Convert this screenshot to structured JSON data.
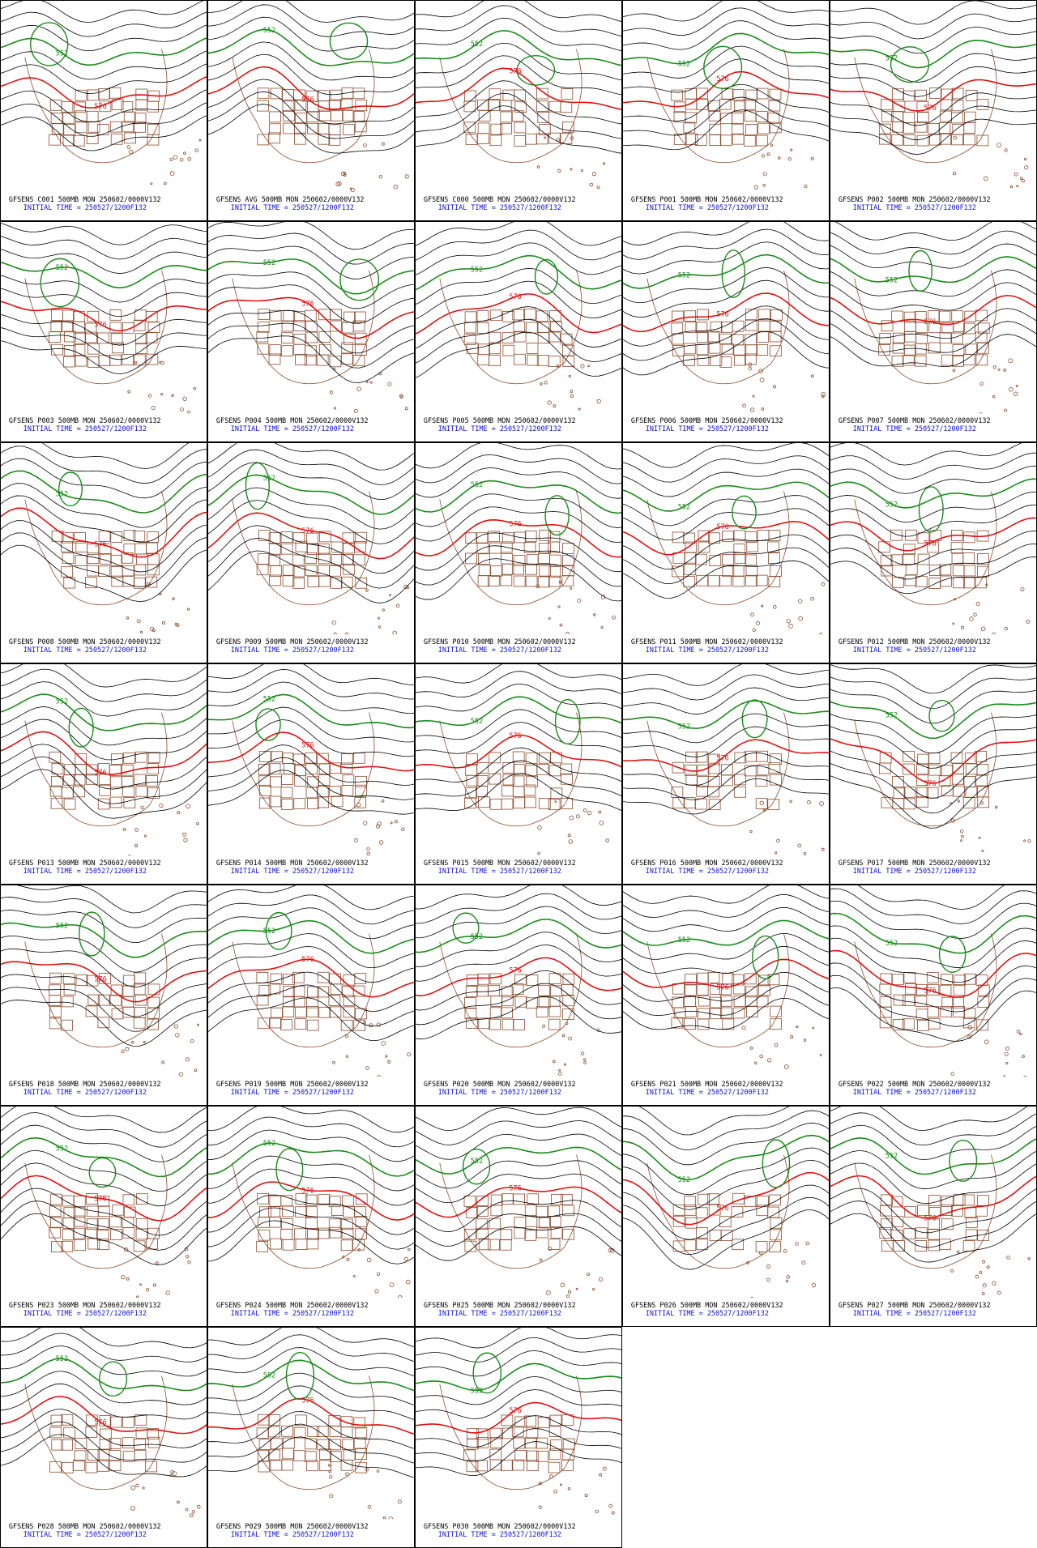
{
  "panels": [
    {
      "title": "GFSENS C001 500MB MON 250602/0000V132",
      "initial_time": "INITIAL TIME = 250527/1200F132",
      "contour_labels": [
        "552",
        "576"
      ]
    },
    {
      "title": "GFSENS AVG 500MB MON 250602/0000V132",
      "initial_time": "INITIAL TIME = 250527/1200F132",
      "contour_labels": [
        "552",
        "576"
      ]
    },
    {
      "title": "GFSENS C000 500MB MON 250602/0000V132",
      "initial_time": "INITIAL TIME = 250527/1200F132",
      "contour_labels": [
        "552",
        "576"
      ]
    },
    {
      "title": "GFSENS P001 500MB MON 250602/0000V132",
      "initial_time": "INITIAL TIME = 250527/1200F132",
      "contour_labels": [
        "552",
        "576"
      ]
    },
    {
      "title": "GFSENS P002 500MB MON 250602/0000V132",
      "initial_time": "INITIAL TIME = 250527/1200F132",
      "contour_labels": [
        "552",
        "576"
      ]
    },
    {
      "title": "GFSENS P003 500MB MON 250602/0000V132",
      "initial_time": "INITIAL TIME = 250527/1200F132",
      "contour_labels": [
        "552",
        "576"
      ]
    },
    {
      "title": "GFSENS P004 500MB MON 250602/0000V132",
      "initial_time": "INITIAL TIME = 250527/1200F132",
      "contour_labels": [
        "552",
        "576"
      ]
    },
    {
      "title": "GFSENS P005 500MB MON 250602/0000V132",
      "initial_time": "INITIAL TIME = 250527/1200F132",
      "contour_labels": [
        "552",
        "576"
      ]
    },
    {
      "title": "GFSENS P006 500MB MON 250602/0000V132",
      "initial_time": "INITIAL TIME = 250527/1200F132",
      "contour_labels": [
        "552",
        "576"
      ]
    },
    {
      "title": "GFSENS P007 500MB MON 250602/0000V132",
      "initial_time": "INITIAL TIME = 250527/1200F132",
      "contour_labels": [
        "552",
        "576"
      ]
    },
    {
      "title": "GFSENS P008 500MB MON 250602/0000V132",
      "initial_time": "INITIAL TIME = 250527/1200F132",
      "contour_labels": [
        "552",
        "576"
      ]
    },
    {
      "title": "GFSENS P009 500MB MON 250602/0000V132",
      "initial_time": "INITIAL TIME = 250527/1200F132",
      "contour_labels": [
        "552",
        "576"
      ]
    },
    {
      "title": "GFSENS P010 500MB MON 250602/0000V132",
      "initial_time": "INITIAL TIME = 250527/1200F132",
      "contour_labels": [
        "552",
        "576"
      ]
    },
    {
      "title": "GFSENS P011 500MB MON 250602/0000V132",
      "initial_time": "INITIAL TIME = 250527/1200F132",
      "contour_labels": [
        "552",
        "576"
      ]
    },
    {
      "title": "GFSENS P012 500MB MON 250602/0000V132",
      "initial_time": "INITIAL TIME = 250527/1200F132",
      "contour_labels": [
        "552",
        "576"
      ]
    },
    {
      "title": "GFSENS P013 500MB MON 250602/0000V132",
      "initial_time": "INITIAL TIME = 250527/1200F132",
      "contour_labels": [
        "552",
        "576"
      ]
    },
    {
      "title": "GFSENS P014 500MB MON 250602/0000V132",
      "initial_time": "INITIAL TIME = 250527/1200F132",
      "contour_labels": [
        "552",
        "576"
      ]
    },
    {
      "title": "GFSENS P015 500MB MON 250602/0000V132",
      "initial_time": "INITIAL TIME = 250527/1200F132",
      "contour_labels": [
        "552",
        "576"
      ]
    },
    {
      "title": "GFSENS P016 500MB MON 250602/0000V132",
      "initial_time": "INITIAL TIME = 250527/1200F132",
      "contour_labels": [
        "552",
        "576"
      ]
    },
    {
      "title": "GFSENS P017 500MB MON 250602/0000V132",
      "initial_time": "INITIAL TIME = 250527/1200F132",
      "contour_labels": [
        "552",
        "576"
      ]
    },
    {
      "title": "GFSENS P018 500MB MON 250602/0000V132",
      "initial_time": "INITIAL TIME = 250527/1200F132",
      "contour_labels": [
        "552",
        "576"
      ]
    },
    {
      "title": "GFSENS P019 500MB MON 250602/0000V132",
      "initial_time": "INITIAL TIME = 250527/1200F132",
      "contour_labels": [
        "552",
        "576"
      ]
    },
    {
      "title": "GFSENS P020 500MB MON 250602/0000V132",
      "initial_time": "INITIAL TIME = 250527/1200F132",
      "contour_labels": [
        "552",
        "576"
      ]
    },
    {
      "title": "GFSENS P021 500MB MON 250602/0000V132",
      "initial_time": "INITIAL TIME = 250527/1200F132",
      "contour_labels": [
        "552",
        "576"
      ]
    },
    {
      "title": "GFSENS P022 500MB MON 250602/0000V132",
      "initial_time": "INITIAL TIME = 250527/1200F132",
      "contour_labels": [
        "552",
        "576"
      ]
    },
    {
      "title": "GFSENS P023 500MB MON 250602/0000V132",
      "initial_time": "INITIAL TIME = 250527/1200F132",
      "contour_labels": [
        "552",
        "576"
      ]
    },
    {
      "title": "GFSENS P024 500MB MON 250602/0000V132",
      "initial_time": "INITIAL TIME = 250527/1200F132",
      "contour_labels": [
        "552",
        "576"
      ]
    },
    {
      "title": "GFSENS P025 500MB MON 250602/0000V132",
      "initial_time": "INITIAL TIME = 250527/1200F132",
      "contour_labels": [
        "552",
        "576"
      ]
    },
    {
      "title": "GFSENS P026 500MB MON 250602/0000V132",
      "initial_time": "INITIAL TIME = 250527/1200F132",
      "contour_labels": [
        "552",
        "576"
      ]
    },
    {
      "title": "GFSENS P027 500MB MON 250602/0000V132",
      "initial_time": "INITIAL TIME = 250527/1200F132",
      "contour_labels": [
        "552",
        "576"
      ]
    },
    {
      "title": "GFSENS P028 500MB MON 250602/0000V132",
      "initial_time": "INITIAL TIME = 250527/1200F132",
      "contour_labels": [
        "552",
        "576"
      ]
    },
    {
      "title": "GFSENS P029 500MB MON 250602/0000V132",
      "initial_time": "INITIAL TIME = 250527/1200F132",
      "contour_labels": [
        "552",
        "576"
      ]
    },
    {
      "title": "GFSENS P030 500MB MON 250602/0000V132",
      "initial_time": "INITIAL TIME = 250527/1200F132",
      "contour_labels": [
        "552",
        "576"
      ]
    }
  ]
}
